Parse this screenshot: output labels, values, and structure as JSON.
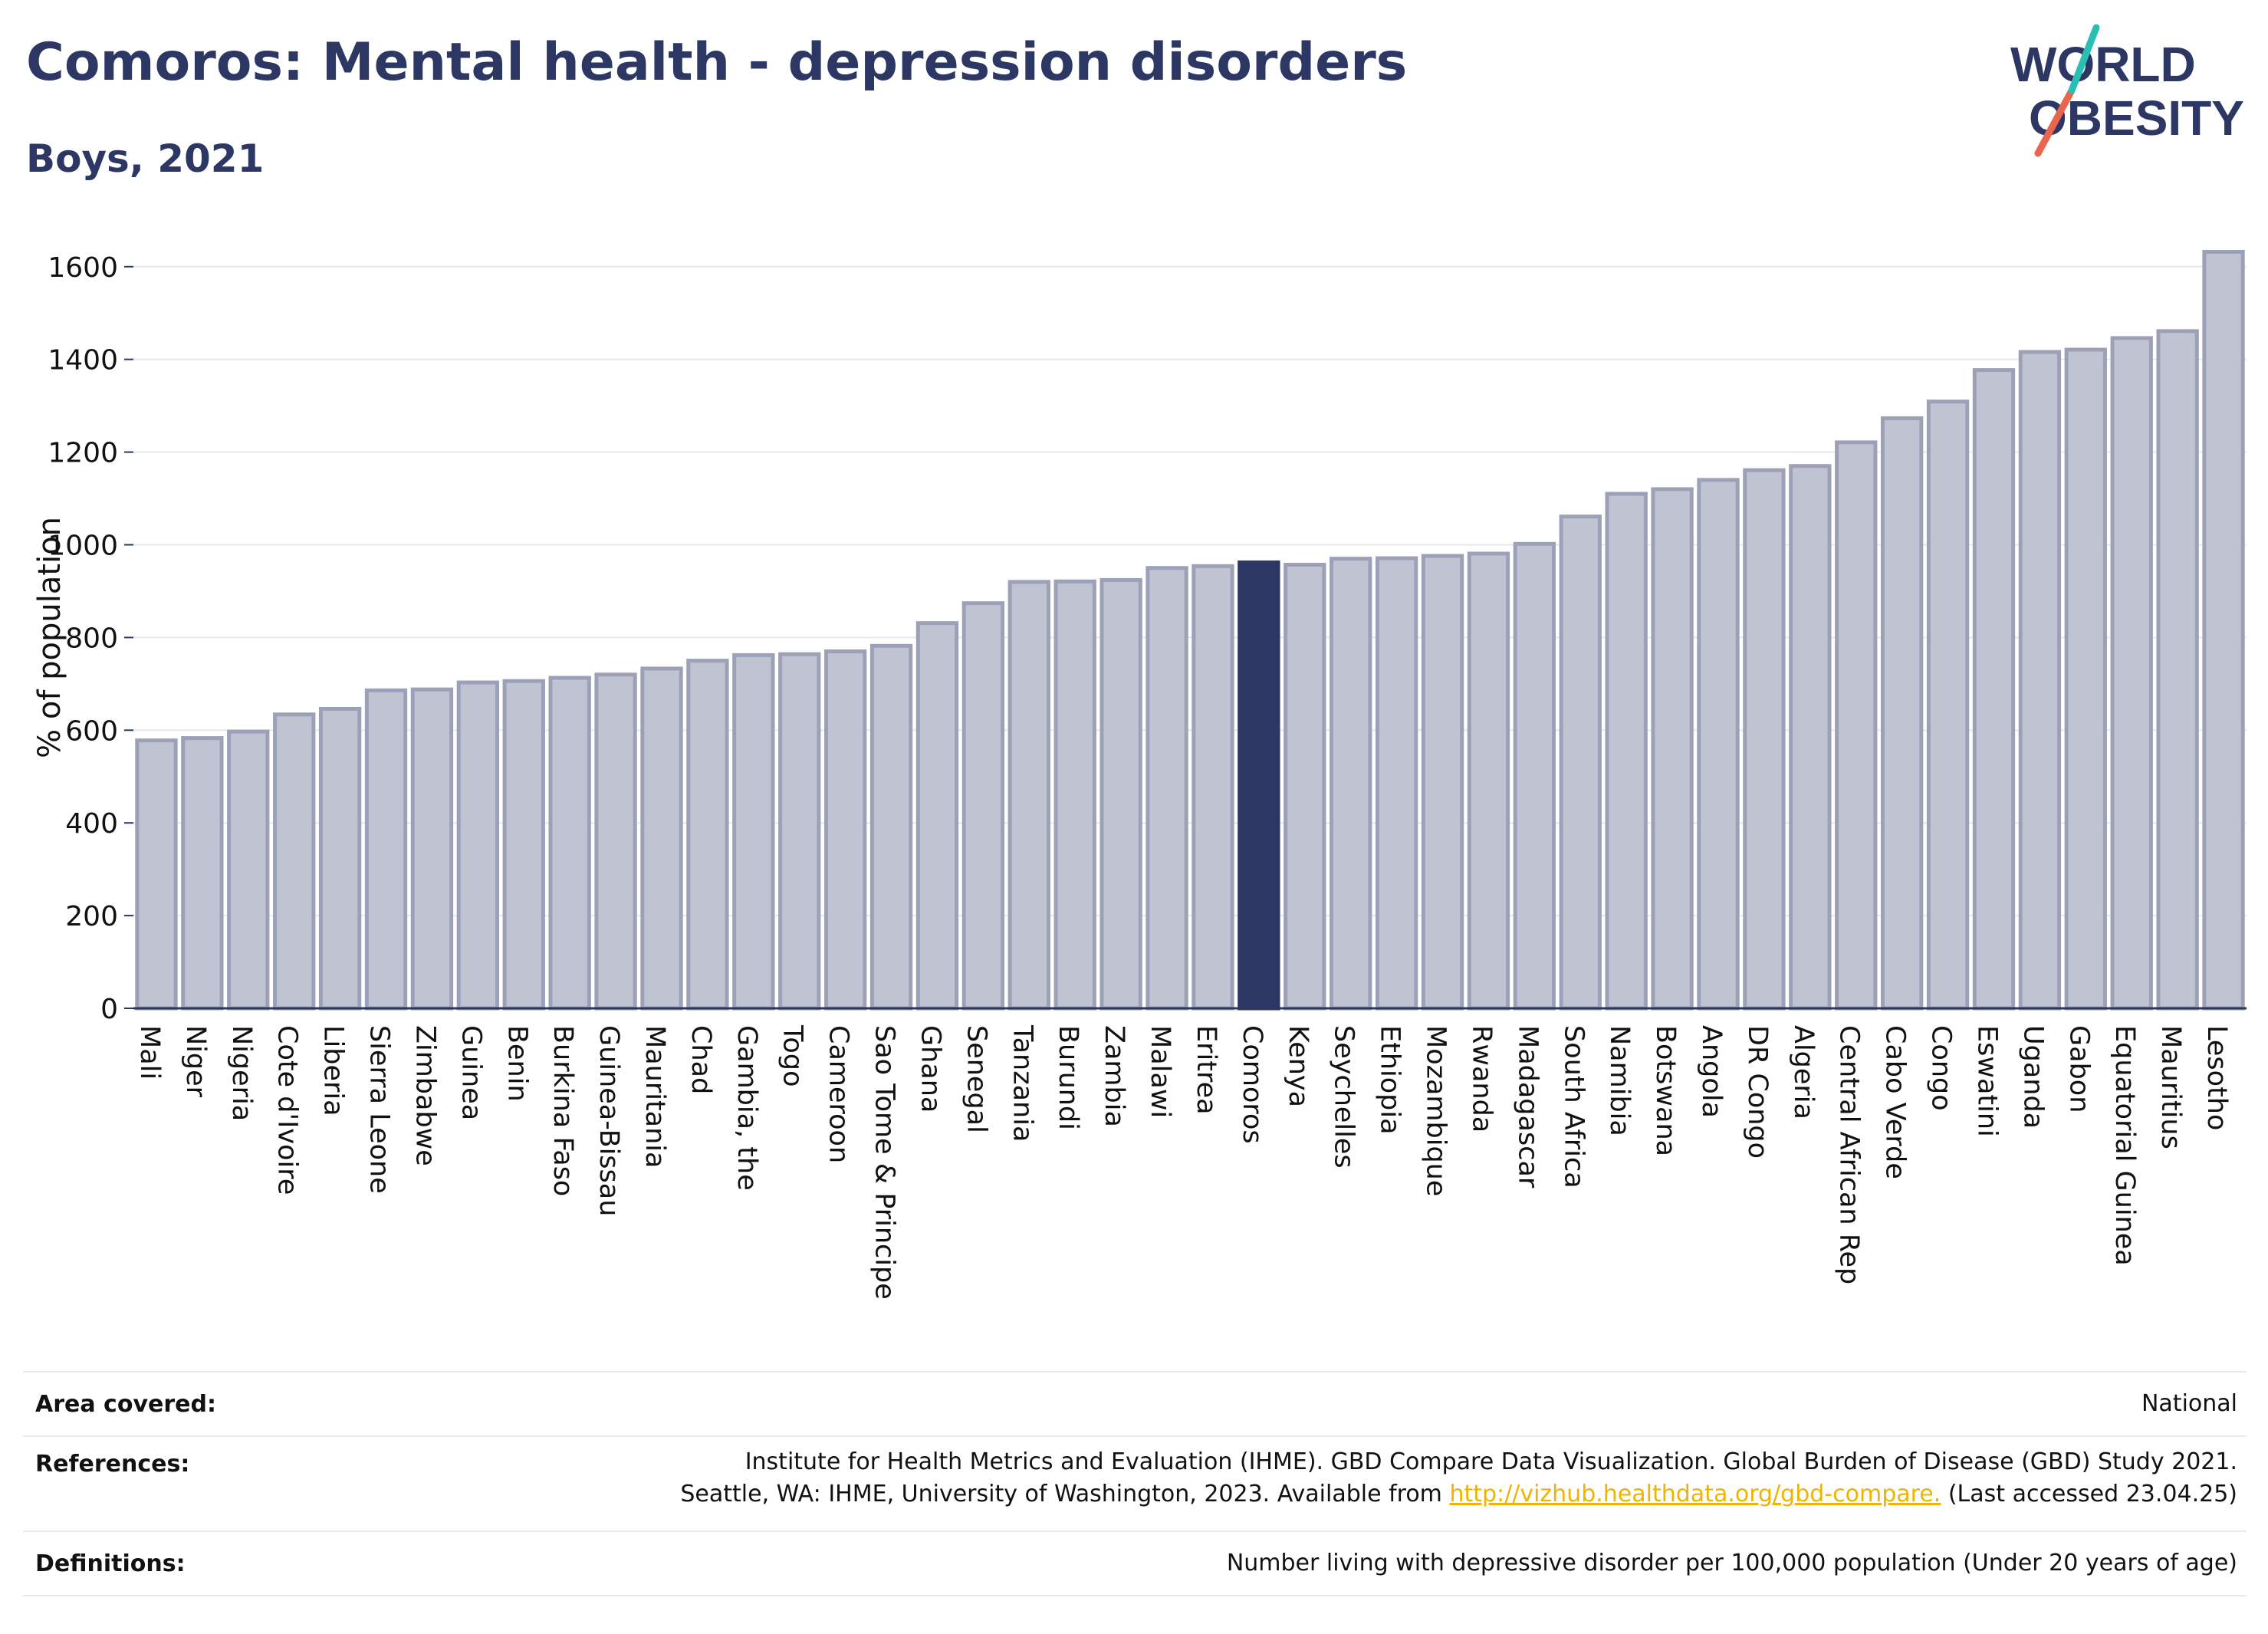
{
  "header": {
    "title": "Comoros: Mental health - depression disorders",
    "subtitle": "Boys, 2021"
  },
  "logo": {
    "line1": "WORLD",
    "line2": "OBESITY"
  },
  "colors": {
    "highlight": "#2c3764",
    "bar_fill": "#c0c3d1",
    "bar_stroke": "#9da1b8",
    "link": "#f0b400",
    "logo_red": "#e8654f",
    "logo_teal": "#2bbfb4"
  },
  "chart_data": {
    "type": "bar",
    "title": "Comoros: Mental health - depression disorders",
    "subtitle": "Boys, 2021",
    "ylabel": "% of population",
    "xlabel": "",
    "ylim": [
      0,
      1650
    ],
    "yticks": [
      0,
      200,
      400,
      600,
      800,
      1000,
      1200,
      1400,
      1600
    ],
    "grid": true,
    "highlight": "Comoros",
    "categories": [
      "Mali",
      "Niger",
      "Nigeria",
      "Cote d'Ivoire",
      "Liberia",
      "Sierra Leone",
      "Zimbabwe",
      "Guinea",
      "Benin",
      "Burkina Faso",
      "Guinea-Bissau",
      "Mauritania",
      "Chad",
      "Gambia, the",
      "Togo",
      "Cameroon",
      "Sao Tome & Principe",
      "Ghana",
      "Senegal",
      "Tanzania",
      "Burundi",
      "Zambia",
      "Malawi",
      "Eritrea",
      "Comoros",
      "Kenya",
      "Seychelles",
      "Ethiopia",
      "Mozambique",
      "Rwanda",
      "Madagascar",
      "South Africa",
      "Namibia",
      "Botswana",
      "Angola",
      "DR Congo",
      "Algeria",
      "Central African Rep",
      "Cabo Verde",
      "Congo",
      "Eswatini",
      "Uganda",
      "Gabon",
      "Equatorial Guinea",
      "Mauritius",
      "Lesotho"
    ],
    "values": [
      578,
      583,
      597,
      634,
      646,
      686,
      688,
      703,
      706,
      713,
      720,
      733,
      750,
      762,
      764,
      770,
      782,
      831,
      874,
      920,
      921,
      924,
      950,
      954,
      962,
      957,
      970,
      971,
      976,
      981,
      1002,
      1061,
      1110,
      1120,
      1140,
      1161,
      1170,
      1221,
      1273,
      1309,
      1377,
      1416,
      1421,
      1446,
      1461,
      1632
    ]
  },
  "footer": {
    "area_label": "Area covered:",
    "area_value": "National",
    "references_label": "References:",
    "references_line1": "Institute for Health Metrics and Evaluation (IHME). GBD Compare Data Visualization. Global Burden of Disease (GBD) Study 2021.",
    "references_line2_pre": "Seattle, WA: IHME, University of Washington, 2023. Available from ",
    "references_link": "http://vizhub.healthdata.org/gbd-compare.",
    "references_line2_post": " (Last accessed 23.04.25)",
    "definitions_label": "Definitions:",
    "definitions_value": "Number living with depressive disorder per 100,000 population (Under 20 years of age)"
  }
}
